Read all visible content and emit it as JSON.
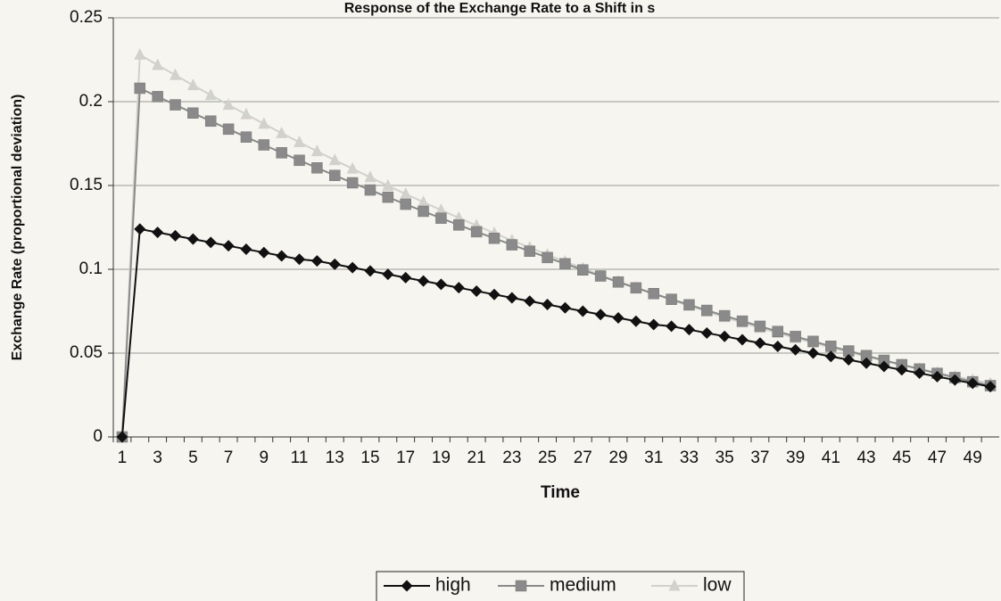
{
  "chart_data": {
    "type": "line",
    "title": "Response of the Exchange Rate to a Shift in s",
    "x_label": "Time",
    "y_label": "Exchange Rate (proportional deviation)",
    "categories": [
      1,
      null,
      3,
      null,
      5,
      null,
      7,
      null,
      9,
      null,
      11,
      null,
      13,
      null,
      15,
      null,
      17,
      null,
      19,
      null,
      21,
      null,
      23,
      null,
      25,
      null,
      27,
      null,
      29,
      null,
      31,
      null,
      33,
      null,
      35,
      null,
      37,
      null,
      39,
      null,
      41,
      null,
      43,
      null,
      45,
      null,
      47,
      null,
      49,
      null
    ],
    "series": [
      {
        "name": "high",
        "color": "#111111",
        "marker": "diamond",
        "values": [
          0,
          0.124,
          0.122,
          0.12,
          0.118,
          0.116,
          0.114,
          0.112,
          0.11,
          0.108,
          0.106,
          0.105,
          0.103,
          0.101,
          0.099,
          0.097,
          0.095,
          0.093,
          0.091,
          0.089,
          0.087,
          0.085,
          0.083,
          0.081,
          0.079,
          0.077,
          0.075,
          0.073,
          0.071,
          0.069,
          0.067,
          0.066,
          0.064,
          0.062,
          0.06,
          0.058,
          0.056,
          0.054,
          0.052,
          0.05,
          0.048,
          0.046,
          0.044,
          0.042,
          0.04,
          0.038,
          0.036,
          0.034,
          0.032,
          0.03
        ]
      },
      {
        "name": "medium",
        "color": "#8a8a8a",
        "marker": "square",
        "values": [
          0,
          0.208,
          0.203,
          0.1981,
          0.1932,
          0.1884,
          0.1836,
          0.1789,
          0.1742,
          0.1695,
          0.165,
          0.1605,
          0.156,
          0.1516,
          0.1473,
          0.143,
          0.1388,
          0.1346,
          0.1305,
          0.1264,
          0.1224,
          0.1185,
          0.1146,
          0.1108,
          0.107,
          0.1033,
          0.0996,
          0.096,
          0.0924,
          0.0889,
          0.0855,
          0.0821,
          0.0788,
          0.0755,
          0.0723,
          0.0691,
          0.066,
          0.0629,
          0.0599,
          0.057,
          0.0541,
          0.0513,
          0.0485,
          0.0457,
          0.0431,
          0.0405,
          0.0379,
          0.0354,
          0.0329,
          0.0306
        ]
      },
      {
        "name": "low",
        "color": "#d2d2cc",
        "marker": "triangle",
        "values": [
          0,
          0.228,
          0.2218,
          0.2158,
          0.2098,
          0.2039,
          0.1981,
          0.1924,
          0.1868,
          0.1812,
          0.1758,
          0.1704,
          0.1651,
          0.16,
          0.1549,
          0.1498,
          0.1449,
          0.1401,
          0.1353,
          0.1307,
          0.1261,
          0.1216,
          0.1172,
          0.113,
          0.1087,
          0.1046,
          0.1006,
          0.0966,
          0.0928,
          0.089,
          0.0853,
          0.0817,
          0.0782,
          0.0748,
          0.0714,
          0.0682,
          0.065,
          0.062,
          0.059,
          0.0561,
          0.0533,
          0.0506,
          0.0479,
          0.0454,
          0.0429,
          0.0406,
          0.0383,
          0.0361,
          0.034,
          0.032
        ]
      }
    ],
    "ylim": [
      0,
      0.25
    ],
    "yticks": [
      0,
      0.05,
      0.1,
      0.15,
      0.2,
      0.25
    ],
    "grid": true,
    "legend": "bottom"
  }
}
